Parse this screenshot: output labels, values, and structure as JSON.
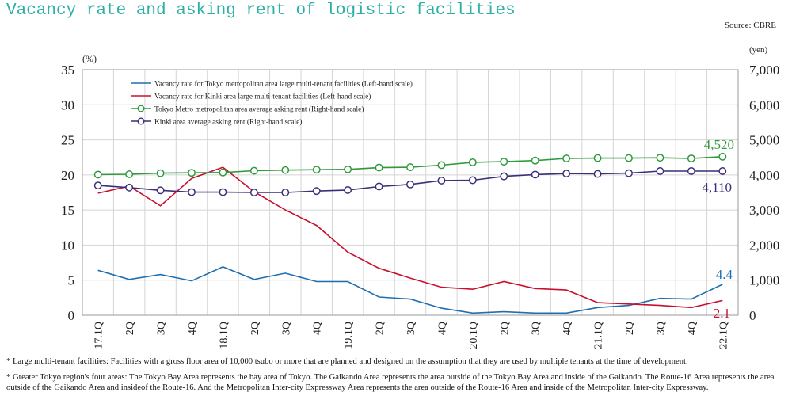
{
  "title": "Vacancy rate and asking rent of logistic facilities",
  "source": "Source: CBRE",
  "chart_data": {
    "type": "line",
    "categories": [
      "17.1Q",
      "2Q",
      "3Q",
      "4Q",
      "18.1Q",
      "2Q",
      "3Q",
      "4Q",
      "19.1Q",
      "2Q",
      "3Q",
      "4Q",
      "20.1Q",
      "2Q",
      "3Q",
      "4Q",
      "21.1Q",
      "2Q",
      "3Q",
      "4Q",
      "22.1Q"
    ],
    "left_axis": {
      "unit": "(%)",
      "ylim": [
        0,
        35
      ],
      "ticks": [
        "0",
        "5",
        "10",
        "15",
        "20",
        "25",
        "30",
        "35"
      ]
    },
    "right_axis": {
      "unit": "(yen)",
      "ylim": [
        0,
        7000
      ],
      "ticks": [
        "0",
        "1,000",
        "2,000",
        "3,000",
        "4,000",
        "5,000",
        "6,000",
        "7,000"
      ]
    },
    "grid": true,
    "legend_position": "top-left",
    "series": [
      {
        "name": "Vacancy rate for Tokyo metropolitan area large multi-tenant facilities (Left-hand scale)",
        "axis": "left",
        "color": "#1f6fb0",
        "marker": "none",
        "values": [
          6.4,
          5.1,
          5.8,
          4.9,
          6.9,
          5.1,
          6.0,
          4.8,
          4.8,
          2.6,
          2.3,
          1.0,
          0.3,
          0.5,
          0.3,
          0.3,
          1.1,
          1.4,
          2.4,
          2.3,
          4.4
        ],
        "end_label": "4.4"
      },
      {
        "name": "Vacancy rate for Kinki area large multi-tenant facilities (Left-hand scale)",
        "axis": "left",
        "color": "#c8102e",
        "marker": "none",
        "values": [
          17.4,
          18.4,
          15.6,
          19.5,
          21.1,
          17.6,
          15.0,
          12.8,
          9.0,
          6.7,
          5.3,
          4.0,
          3.7,
          4.8,
          3.8,
          3.6,
          1.8,
          1.6,
          1.4,
          1.1,
          2.1
        ],
        "end_label": "2.1"
      },
      {
        "name": "Tokyo Metro metropolitan area average asking rent (Right-hand scale)",
        "axis": "right",
        "color": "#2e9a3b",
        "marker": "circle",
        "values": [
          4010,
          4020,
          4050,
          4060,
          4070,
          4120,
          4140,
          4150,
          4160,
          4210,
          4220,
          4280,
          4360,
          4380,
          4410,
          4470,
          4480,
          4480,
          4490,
          4470,
          4520
        ],
        "end_label": "4,520"
      },
      {
        "name": "Kinki area average asking rent (Right-hand scale)",
        "axis": "right",
        "color": "#3c2f7a",
        "marker": "circle",
        "values": [
          3700,
          3640,
          3560,
          3510,
          3510,
          3500,
          3500,
          3540,
          3570,
          3670,
          3730,
          3840,
          3850,
          3960,
          4010,
          4040,
          4030,
          4050,
          4110,
          4110,
          4110
        ],
        "end_label": "4,110"
      }
    ]
  },
  "notes": [
    "* Large multi-tenant facilities: Facilities with a gross floor area of 10,000 tsubo or more that are planned and designed on the assumption that they are used by multiple tenants at the time of development.",
    "* Greater Tokyo region's four areas: The Tokyo Bay Area represents the bay area of Tokyo. The Gaikando Area represents the area outside of the Tokyo Bay Area and inside of the Gaikando. The Route-16 Area represents the area outside of the Gaikando Area and insideof the Route-16. And the Metropolitan Inter-city Expressway Area represents the area outside of the Route-16 Area and inside of the Metropolitan Inter-city Expressway."
  ]
}
